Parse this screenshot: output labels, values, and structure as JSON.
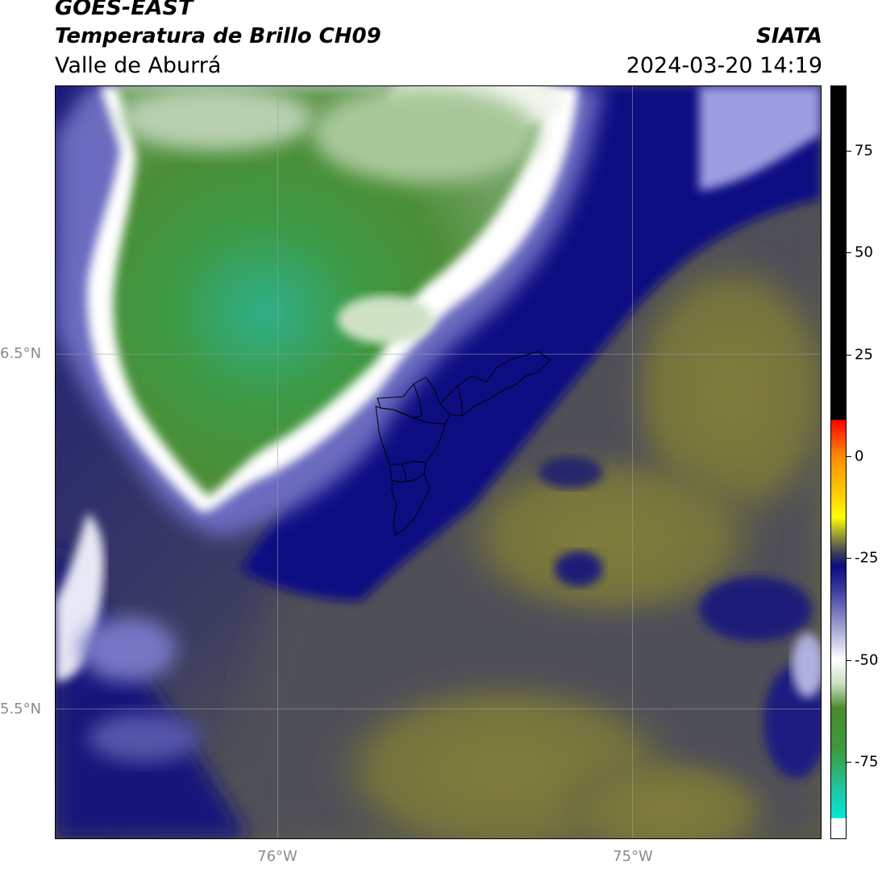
{
  "header": {
    "satellite": "GOES-EAST",
    "product": "Temperatura de Brillo CH09",
    "region": "Valle de Aburrá",
    "agency": "SIATA",
    "datetime": "2024-03-20 14:19"
  },
  "map": {
    "lat_labels": [
      "6.5°N",
      "5.5°N"
    ],
    "lon_labels": [
      "76°W",
      "75°W"
    ],
    "lat_range": [
      5.13,
      7.25
    ],
    "lon_range": [
      -76.62,
      -74.46
    ],
    "graticule_lats": [
      6.5,
      5.5
    ],
    "graticule_lons": [
      -76.0,
      -75.0
    ],
    "colors": {
      "cold_cloud_green": "#4a9a45",
      "cloud_edge_white": "#ffffff",
      "mid_navy": "#14147a",
      "warm_gray": "#4f4f58",
      "warm_olive": "#7d7a3a",
      "boundary_line": "#000000",
      "graticule": "#9a9a9a"
    }
  },
  "colorbar": {
    "tick_labels": [
      "75",
      "50",
      "25",
      "0",
      "-25",
      "-50",
      "-75"
    ],
    "tick_values": [
      75,
      50,
      25,
      0,
      -25,
      -50,
      -75
    ],
    "range": [
      -94,
      91
    ],
    "stops": [
      {
        "value": 91,
        "color": "#000000"
      },
      {
        "value": 9,
        "color": "#000000"
      },
      {
        "value": 8.9,
        "color": "#ff0000"
      },
      {
        "value": 0,
        "color": "#ff8c00"
      },
      {
        "value": -10,
        "color": "#ffd200"
      },
      {
        "value": -15,
        "color": "#ffff00"
      },
      {
        "value": -20,
        "color": "#8c8c3c"
      },
      {
        "value": -24,
        "color": "#3a3a58"
      },
      {
        "value": -27,
        "color": "#0c0c80"
      },
      {
        "value": -33,
        "color": "#3c3ca0"
      },
      {
        "value": -42,
        "color": "#a0a0d2"
      },
      {
        "value": -50,
        "color": "#ffffff"
      },
      {
        "value": -56,
        "color": "#c8e0c0"
      },
      {
        "value": -62,
        "color": "#4a8a2e"
      },
      {
        "value": -72,
        "color": "#3c9a3c"
      },
      {
        "value": -82,
        "color": "#1ec8a0"
      },
      {
        "value": -89,
        "color": "#00e8d8"
      },
      {
        "value": -89.1,
        "color": "#ffffff"
      },
      {
        "value": -94,
        "color": "#ffffff"
      }
    ]
  }
}
